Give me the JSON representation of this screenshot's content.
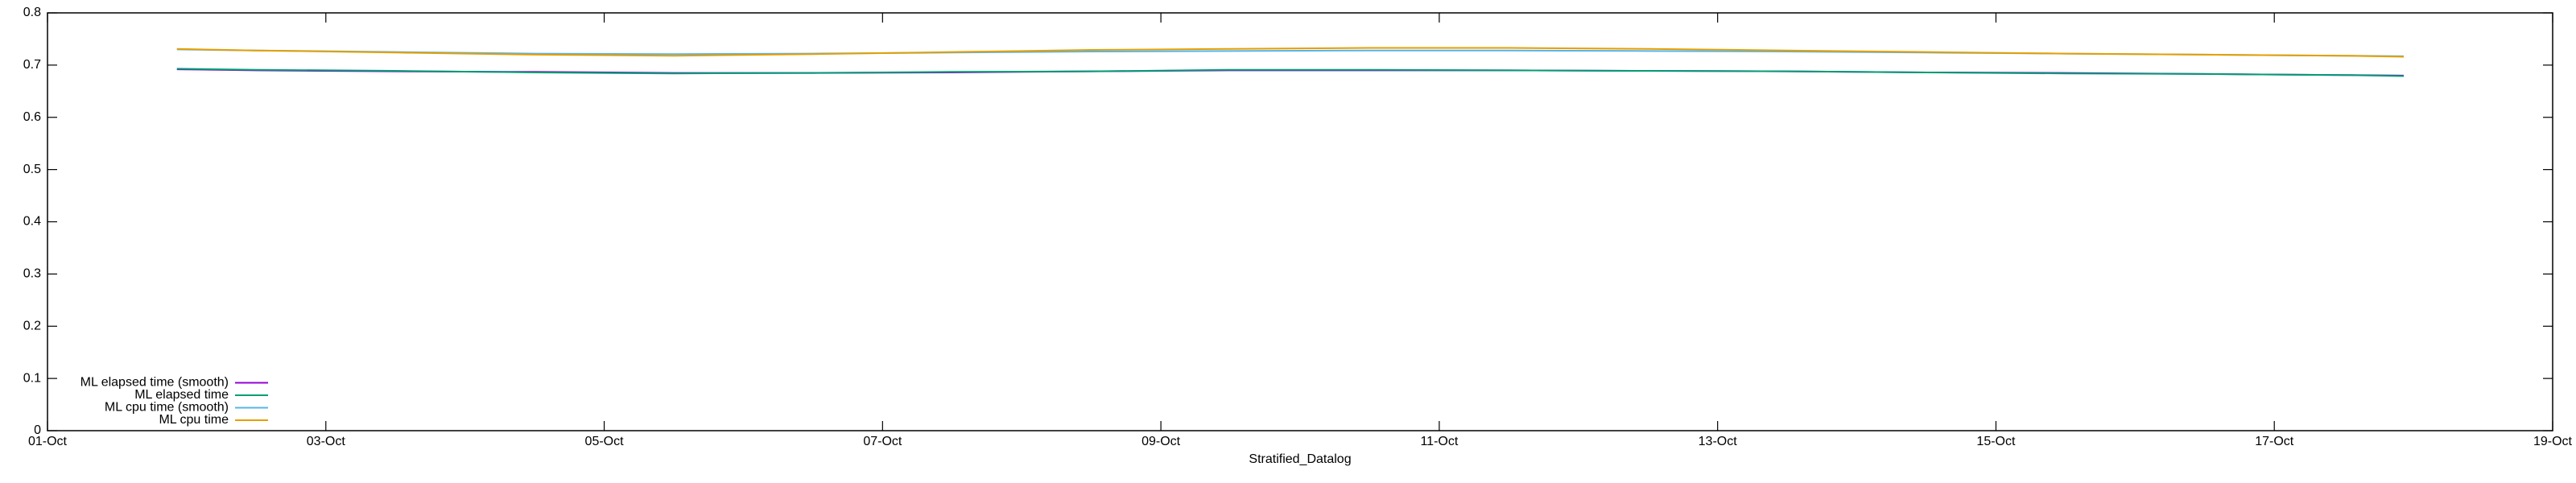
{
  "chart_data": {
    "type": "line",
    "xlabel": "Stratified_Datalog",
    "xlim": [
      1,
      19
    ],
    "xticks": [
      {
        "value": 1,
        "label": "01-Oct"
      },
      {
        "value": 3,
        "label": "03-Oct"
      },
      {
        "value": 5,
        "label": "05-Oct"
      },
      {
        "value": 7,
        "label": "07-Oct"
      },
      {
        "value": 9,
        "label": "09-Oct"
      },
      {
        "value": 11,
        "label": "11-Oct"
      },
      {
        "value": 13,
        "label": "13-Oct"
      },
      {
        "value": 15,
        "label": "15-Oct"
      },
      {
        "value": 17,
        "label": "17-Oct"
      },
      {
        "value": 19,
        "label": "19-Oct"
      }
    ],
    "ylim": [
      0,
      0.8
    ],
    "yticks": [
      0,
      0.1,
      0.2,
      0.3,
      0.4,
      0.5,
      0.6,
      0.7,
      0.8
    ],
    "legend": "bottom left",
    "x": [
      1.93,
      2.5,
      3.5,
      4.5,
      5.5,
      6.5,
      7.5,
      8.5,
      9.5,
      10.5,
      11.5,
      12.5,
      13.5,
      14.5,
      15.5,
      16.5,
      17.5,
      17.93
    ],
    "series": [
      {
        "name": "ML elapsed time (smooth)",
        "color": "#9400d3",
        "values": [
          0.692,
          0.69,
          0.688,
          0.687,
          0.685,
          0.685,
          0.686,
          0.688,
          0.69,
          0.69,
          0.69,
          0.689,
          0.688,
          0.686,
          0.685,
          0.683,
          0.681,
          0.68
        ]
      },
      {
        "name": "ML elapsed time",
        "color": "#009e73",
        "values": [
          0.693,
          0.691,
          0.689,
          0.686,
          0.684,
          0.685,
          0.687,
          0.688,
          0.691,
          0.691,
          0.69,
          0.689,
          0.688,
          0.686,
          0.684,
          0.683,
          0.681,
          0.679
        ]
      },
      {
        "name": "ML cpu time (smooth)",
        "color": "#56b4e9",
        "values": [
          0.73,
          0.728,
          0.725,
          0.722,
          0.721,
          0.722,
          0.724,
          0.726,
          0.727,
          0.728,
          0.728,
          0.727,
          0.726,
          0.724,
          0.722,
          0.72,
          0.718,
          0.717
        ]
      },
      {
        "name": "ML cpu time",
        "color": "#e69f00",
        "values": [
          0.731,
          0.728,
          0.724,
          0.72,
          0.718,
          0.721,
          0.725,
          0.729,
          0.731,
          0.733,
          0.733,
          0.731,
          0.728,
          0.725,
          0.722,
          0.72,
          0.718,
          0.716
        ]
      }
    ]
  }
}
